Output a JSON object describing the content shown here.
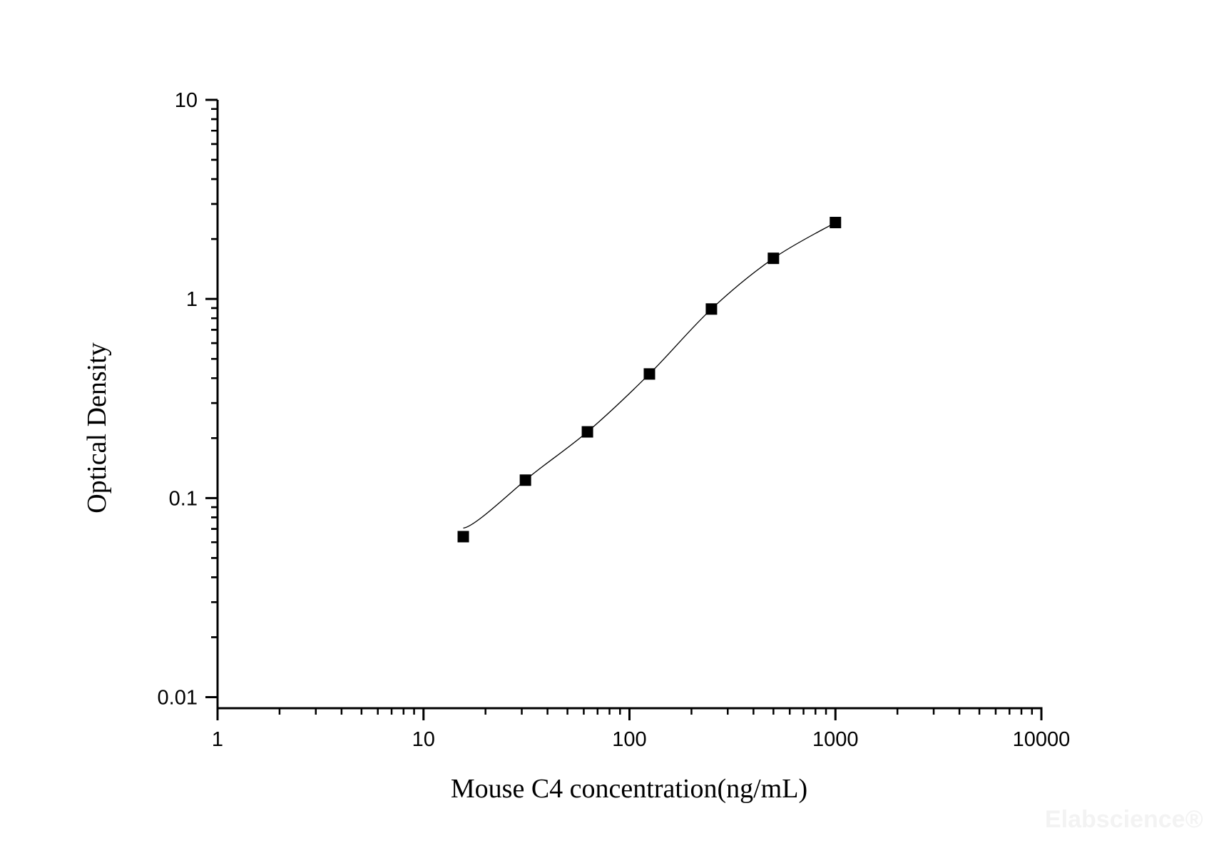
{
  "chart_data": {
    "type": "scatter",
    "title": "",
    "xlabel": "Mouse C4 concentration(ng/mL)",
    "ylabel": "Optical Density",
    "x_scale": "log",
    "y_scale": "log",
    "xlim": [
      1,
      10000
    ],
    "ylim": [
      0.0088,
      10
    ],
    "x_ticks": [
      "1",
      "10",
      "100",
      "1000",
      "10000"
    ],
    "y_ticks": [
      "10",
      "1",
      "0.1",
      "0.01"
    ],
    "grid": false,
    "legend": "none",
    "series": [
      {
        "marker": "square",
        "color": "#000000",
        "fit_line": true,
        "x": [
          15.6,
          31.25,
          62.5,
          125,
          250,
          500,
          1000
        ],
        "y": [
          0.064,
          0.123,
          0.215,
          0.42,
          0.89,
          1.6,
          2.42
        ]
      }
    ],
    "watermark": "Elabscience®"
  }
}
